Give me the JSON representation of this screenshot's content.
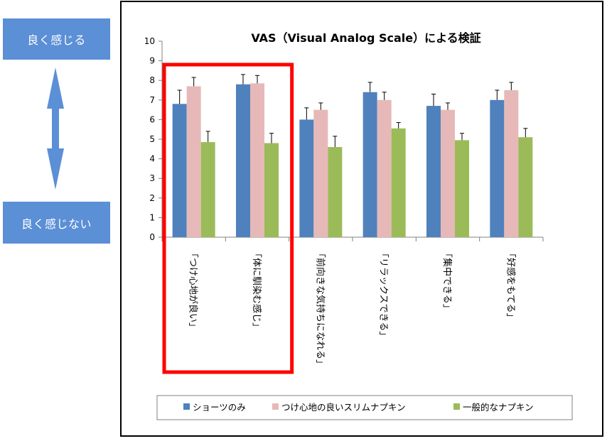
{
  "side_labels": {
    "good": "良く感じる",
    "bad": "良く感じない"
  },
  "colors": {
    "side_box": "#5b8fd6",
    "highlight": "#ff0000"
  },
  "chart_data": {
    "type": "bar",
    "title": "VAS（Visual Analog Scale）による検証",
    "xlabel": "",
    "ylabel": "",
    "ylim": [
      0,
      10
    ],
    "yticks": [
      "0",
      "1",
      "2",
      "3",
      "4",
      "5",
      "6",
      "7",
      "8",
      "9",
      "10"
    ],
    "categories": [
      "「つけ心地が良い」",
      "「体に馴染む感じ」",
      "「前向きな気持ちになれる」",
      "「リラックスできる」",
      "「集中できる」",
      "「好感をもてる」"
    ],
    "series": [
      {
        "name": "ショーツのみ",
        "color": "#4f81bd",
        "values": [
          6.8,
          7.8,
          6.0,
          7.4,
          6.7,
          7.0
        ],
        "errors": [
          0.7,
          0.5,
          0.6,
          0.5,
          0.6,
          0.5
        ]
      },
      {
        "name": "つけ心地の良いスリムナプキン",
        "color": "#e6b9b8",
        "values": [
          7.7,
          7.85,
          6.5,
          7.0,
          6.5,
          7.5
        ],
        "errors": [
          0.45,
          0.4,
          0.35,
          0.4,
          0.35,
          0.4
        ]
      },
      {
        "name": "一般的なナプキン",
        "color": "#9bbb59",
        "values": [
          4.85,
          4.8,
          4.6,
          5.55,
          4.95,
          5.1
        ],
        "errors": [
          0.55,
          0.5,
          0.55,
          0.3,
          0.35,
          0.45
        ]
      }
    ],
    "grid": false,
    "legend_position": "bottom",
    "highlighted_categories": [
      0,
      1
    ]
  }
}
